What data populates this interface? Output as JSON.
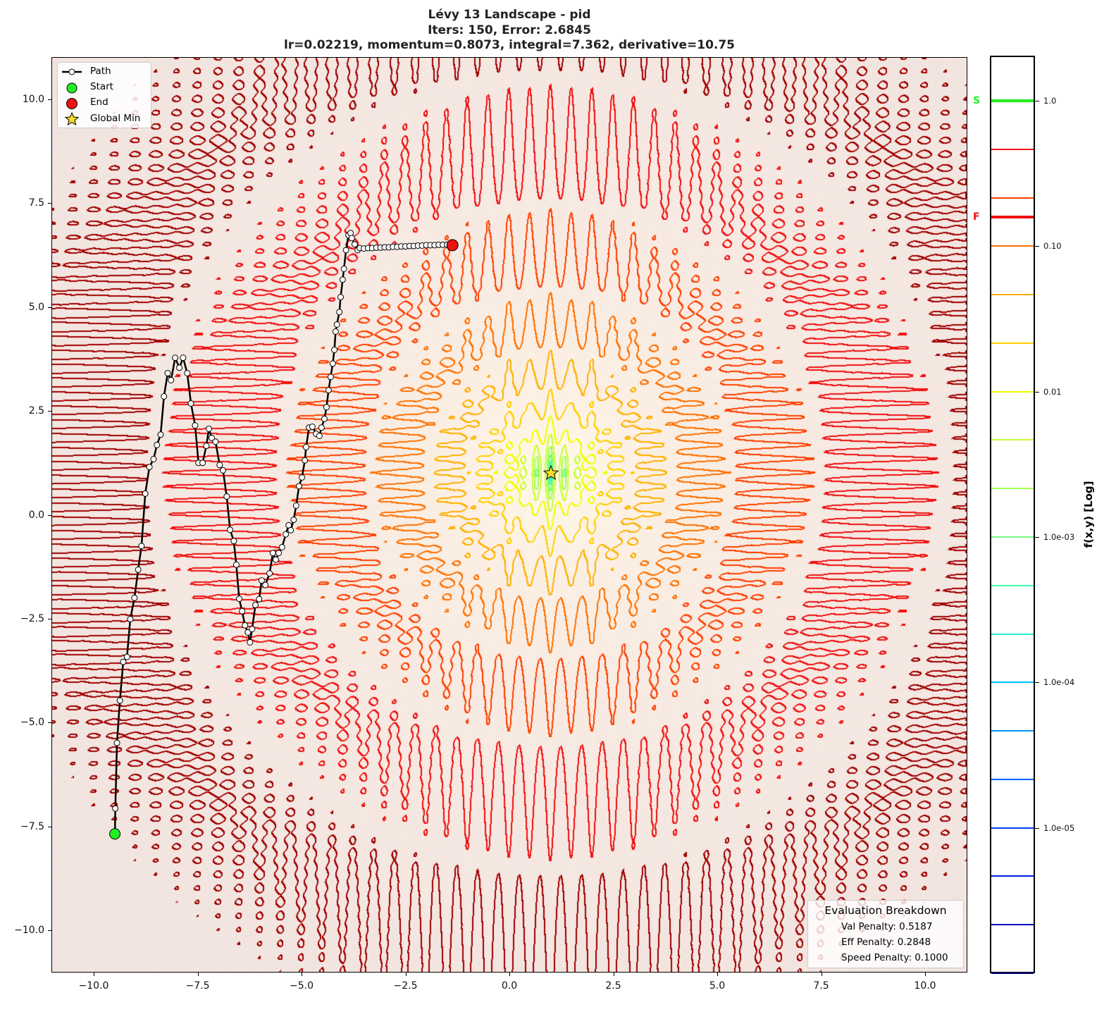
{
  "title": {
    "line1": "Lévy 13 Landscape - pid",
    "line2": "Iters: 150, Error: 2.6845",
    "line3": "lr=0.02219, momentum=0.8073, integral=7.362, derivative=10.75"
  },
  "legend": {
    "path": "Path",
    "start": "Start",
    "end": "End",
    "global_min": "Global Min"
  },
  "evaluation": {
    "title": "Evaluation Breakdown",
    "val": "Val Penalty: 0.5187",
    "eff": "Eff Penalty: 0.2848",
    "speed": "Speed Penalty: 0.1000"
  },
  "colorbar": {
    "label": "f(x,y) [Log]",
    "scale": "log",
    "range": [
      1e-06,
      2.04
    ],
    "ticks": [
      {
        "v": 1.0,
        "t": "1.0"
      },
      {
        "v": 0.1,
        "t": "0.10"
      },
      {
        "v": 0.01,
        "t": "0.01"
      },
      {
        "v": 0.001,
        "t": "1.0e-03"
      },
      {
        "v": 0.0001,
        "t": "1.0e-04"
      },
      {
        "v": 1e-05,
        "t": "1.0e-05"
      }
    ],
    "markers": [
      {
        "label": "S",
        "value": 1.0,
        "color": "#22ee22"
      },
      {
        "label": "F",
        "value": 0.158,
        "color": "#ee1111"
      }
    ]
  },
  "chart_data": {
    "type": "line",
    "title": "Lévy 13 Landscape - pid",
    "xlim": [
      -11,
      11
    ],
    "ylim": [
      -11,
      11
    ],
    "x_ticks": [
      {
        "v": -10,
        "t": "−10.0"
      },
      {
        "v": -7.5,
        "t": "−7.5"
      },
      {
        "v": -5,
        "t": "−5.0"
      },
      {
        "v": -2.5,
        "t": "−2.5"
      },
      {
        "v": 0,
        "t": "0.0"
      },
      {
        "v": 2.5,
        "t": "2.5"
      },
      {
        "v": 5,
        "t": "5.0"
      },
      {
        "v": 7.5,
        "t": "7.5"
      },
      {
        "v": 10,
        "t": "10.0"
      }
    ],
    "y_ticks": [
      {
        "v": 10,
        "t": "10.0"
      },
      {
        "v": 7.5,
        "t": "7.5"
      },
      {
        "v": 5,
        "t": "5.0"
      },
      {
        "v": 2.5,
        "t": "2.5"
      },
      {
        "v": 0,
        "t": "0.0"
      },
      {
        "v": -2.5,
        "t": "−2.5"
      },
      {
        "v": -5,
        "t": "−5.0"
      },
      {
        "v": -7.5,
        "t": "−7.5"
      },
      {
        "v": -10,
        "t": "−10.0"
      }
    ],
    "contour_levels_log10": {
      "min": -6,
      "step": 0.3333,
      "count": 19
    },
    "contour_colors": [
      "#000080",
      "#0000c0",
      "#0020e0",
      "#0040ff",
      "#0060ff",
      "#0090ff",
      "#00c0ff",
      "#20f0d0",
      "#40ffb0",
      "#70ff80",
      "#a0ff50",
      "#c8ff30",
      "#f0ff00",
      "#ffd000",
      "#ffb000",
      "#ff7000",
      "#ff4000",
      "#f01010",
      "#a00000"
    ],
    "global_min": [
      1,
      1
    ],
    "start": [
      -9.49,
      -7.68
    ],
    "end": [
      -1.37,
      6.49
    ],
    "path": [
      [
        -9.49,
        -7.68
      ],
      [
        -9.48,
        -7.07
      ],
      [
        -9.44,
        -5.49
      ],
      [
        -9.37,
        -4.47
      ],
      [
        -9.29,
        -3.54
      ],
      [
        -9.2,
        -3.42
      ],
      [
        -9.12,
        -2.51
      ],
      [
        -9.02,
        -2.0
      ],
      [
        -8.93,
        -1.32
      ],
      [
        -8.85,
        -0.75
      ],
      [
        -8.76,
        0.51
      ],
      [
        -8.66,
        1.15
      ],
      [
        -8.56,
        1.34
      ],
      [
        -8.48,
        1.68
      ],
      [
        -8.39,
        1.93
      ],
      [
        -8.31,
        2.85
      ],
      [
        -8.22,
        3.41
      ],
      [
        -8.14,
        3.24
      ],
      [
        -8.04,
        3.78
      ],
      [
        -7.94,
        3.54
      ],
      [
        -7.85,
        3.78
      ],
      [
        -7.75,
        3.41
      ],
      [
        -7.66,
        2.68
      ],
      [
        -7.56,
        2.15
      ],
      [
        -7.48,
        1.25
      ],
      [
        -7.38,
        1.25
      ],
      [
        -7.29,
        1.66
      ],
      [
        -7.23,
        2.07
      ],
      [
        -7.16,
        1.85
      ],
      [
        -7.07,
        1.76
      ],
      [
        -6.97,
        1.2
      ],
      [
        -6.89,
        1.07
      ],
      [
        -6.8,
        0.44
      ],
      [
        -6.72,
        -0.36
      ],
      [
        -6.63,
        -0.63
      ],
      [
        -6.57,
        -1.2
      ],
      [
        -6.5,
        -2.02
      ],
      [
        -6.43,
        -2.32
      ],
      [
        -6.36,
        -2.66
      ],
      [
        -6.29,
        -2.83
      ],
      [
        -6.24,
        -3.07
      ],
      [
        -6.19,
        -2.75
      ],
      [
        -6.11,
        -2.17
      ],
      [
        -6.02,
        -2.03
      ],
      [
        -5.96,
        -1.58
      ],
      [
        -5.87,
        -1.69
      ],
      [
        -5.77,
        -1.41
      ],
      [
        -5.69,
        -0.92
      ],
      [
        -5.62,
        -1.08
      ],
      [
        -5.55,
        -0.92
      ],
      [
        -5.47,
        -0.78
      ],
      [
        -5.38,
        -0.47
      ],
      [
        -5.31,
        -0.25
      ],
      [
        -5.26,
        -0.37
      ],
      [
        -5.19,
        -0.12
      ],
      [
        -5.13,
        0.22
      ],
      [
        -5.06,
        0.69
      ],
      [
        -4.99,
        0.9
      ],
      [
        -4.92,
        1.31
      ],
      [
        -4.89,
        1.63
      ],
      [
        -4.82,
        2.1
      ],
      [
        -4.74,
        2.12
      ],
      [
        -4.65,
        1.95
      ],
      [
        -4.57,
        1.9
      ],
      [
        -4.52,
        2.1
      ],
      [
        -4.45,
        2.31
      ],
      [
        -4.4,
        2.59
      ],
      [
        -4.35,
        3.0
      ],
      [
        -4.3,
        3.32
      ],
      [
        -4.25,
        3.64
      ],
      [
        -4.21,
        3.97
      ],
      [
        -4.18,
        4.41
      ],
      [
        -4.15,
        4.58
      ],
      [
        -4.09,
        4.88
      ],
      [
        -4.06,
        5.24
      ],
      [
        -4.01,
        5.66
      ],
      [
        -3.98,
        5.92
      ],
      [
        -3.93,
        6.37
      ],
      [
        -3.87,
        6.73
      ],
      [
        -3.82,
        6.78
      ],
      [
        -3.79,
        6.66
      ],
      [
        -3.72,
        6.51
      ],
      [
        -3.65,
        6.37
      ],
      [
        -3.6,
        6.42
      ],
      [
        -3.5,
        6.41
      ],
      [
        -3.4,
        6.42
      ],
      [
        -3.3,
        6.42
      ],
      [
        -3.2,
        6.43
      ],
      [
        -3.1,
        6.43
      ],
      [
        -3.0,
        6.44
      ],
      [
        -2.9,
        6.44
      ],
      [
        -2.8,
        6.45
      ],
      [
        -2.7,
        6.45
      ],
      [
        -2.6,
        6.46
      ],
      [
        -2.5,
        6.46
      ],
      [
        -2.4,
        6.47
      ],
      [
        -2.3,
        6.47
      ],
      [
        -2.2,
        6.48
      ],
      [
        -2.1,
        6.48
      ],
      [
        -2.0,
        6.49
      ],
      [
        -1.9,
        6.49
      ],
      [
        -1.8,
        6.49
      ],
      [
        -1.7,
        6.5
      ],
      [
        -1.6,
        6.5
      ],
      [
        -1.5,
        6.5
      ],
      [
        -1.37,
        6.49
      ]
    ]
  }
}
